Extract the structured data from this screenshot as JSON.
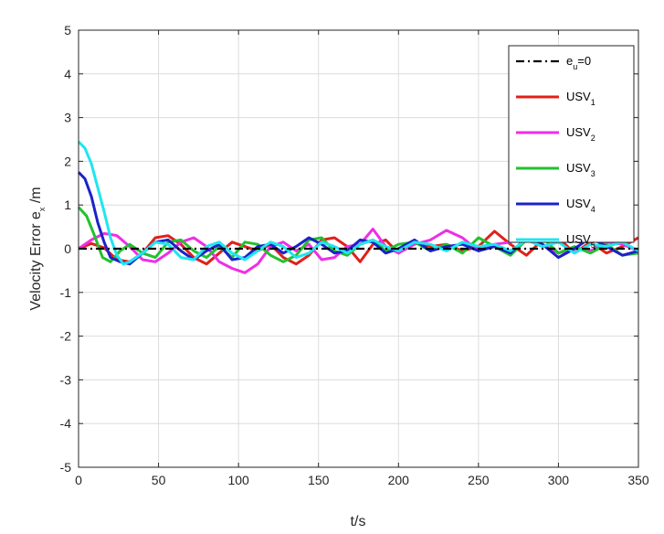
{
  "chart_data": {
    "type": "line",
    "title": "",
    "xlabel": "t/s",
    "ylabel": {
      "main": "Velocity Error e",
      "sub": "x",
      "tail": " /m"
    },
    "xlim": [
      0,
      350
    ],
    "ylim": [
      -5,
      5
    ],
    "xticks": [
      "0",
      "50",
      "100",
      "150",
      "200",
      "250",
      "300",
      "350"
    ],
    "yticks": [
      "-5",
      "-4",
      "-3",
      "-2",
      "-1",
      "0",
      "1",
      "2",
      "3",
      "4",
      "5"
    ],
    "grid": true,
    "legend_position": "top-right",
    "series": [
      {
        "name": "e_u=0",
        "label_main": "e",
        "label_sub": "u",
        "label_tail": "=0",
        "color": "#000000",
        "dash": "dash-dot",
        "x": [
          0,
          350
        ],
        "y": [
          0,
          0
        ]
      },
      {
        "name": "USV_1",
        "label_main": "USV",
        "label_sub": "1",
        "label_tail": "",
        "color": "#e0201b",
        "dash": "solid",
        "x": [
          0,
          8,
          16,
          24,
          32,
          40,
          48,
          56,
          64,
          72,
          80,
          88,
          96,
          104,
          112,
          120,
          128,
          136,
          144,
          152,
          160,
          168,
          176,
          184,
          192,
          200,
          210,
          220,
          230,
          240,
          250,
          260,
          270,
          280,
          290,
          300,
          310,
          320,
          330,
          340,
          350
        ],
        "y": [
          0,
          0.12,
          0.02,
          -0.25,
          -0.3,
          -0.1,
          0.25,
          0.3,
          0.1,
          -0.2,
          -0.35,
          -0.1,
          0.15,
          0.05,
          -0.05,
          0.1,
          -0.2,
          -0.35,
          -0.15,
          0.2,
          0.25,
          0.05,
          -0.3,
          0.1,
          0.2,
          -0.1,
          0.15,
          0.05,
          0.1,
          -0.05,
          0.05,
          0.4,
          0.1,
          -0.15,
          0.2,
          0.25,
          -0.1,
          0.15,
          -0.1,
          0.05,
          0.25
        ]
      },
      {
        "name": "USV_2",
        "label_main": "USV",
        "label_sub": "2",
        "label_tail": "",
        "color": "#ee2ee6",
        "dash": "solid",
        "x": [
          0,
          8,
          16,
          24,
          32,
          40,
          48,
          56,
          64,
          72,
          80,
          88,
          96,
          104,
          112,
          120,
          128,
          136,
          144,
          152,
          160,
          168,
          176,
          184,
          192,
          200,
          210,
          220,
          230,
          240,
          250,
          260,
          270,
          280,
          290,
          300,
          310,
          320,
          330,
          340,
          350
        ],
        "y": [
          0,
          0.2,
          0.35,
          0.3,
          0.05,
          -0.25,
          -0.3,
          -0.1,
          0.15,
          0.25,
          0.05,
          -0.3,
          -0.45,
          -0.55,
          -0.35,
          0.05,
          0.15,
          -0.05,
          0.1,
          -0.25,
          -0.2,
          0.05,
          0.1,
          0.45,
          0.05,
          -0.1,
          0.1,
          0.2,
          0.42,
          0.25,
          -0.05,
          0.1,
          0.15,
          0.35,
          0.1,
          -0.1,
          0.0,
          -0.05,
          0.15,
          0.1,
          -0.05
        ]
      },
      {
        "name": "USV_3",
        "label_main": "USV",
        "label_sub": "3",
        "label_tail": "",
        "color": "#22c12e",
        "dash": "solid",
        "x": [
          0,
          5,
          10,
          15,
          20,
          26,
          32,
          40,
          48,
          56,
          64,
          72,
          80,
          88,
          96,
          104,
          112,
          120,
          128,
          136,
          144,
          152,
          160,
          168,
          176,
          184,
          192,
          200,
          210,
          220,
          230,
          240,
          250,
          260,
          270,
          280,
          290,
          300,
          310,
          320,
          330,
          340,
          350
        ],
        "y": [
          0.95,
          0.75,
          0.3,
          -0.2,
          -0.3,
          -0.05,
          0.1,
          -0.1,
          -0.2,
          0.15,
          0.2,
          -0.05,
          -0.2,
          0.05,
          -0.2,
          0.15,
          0.1,
          -0.15,
          -0.3,
          -0.15,
          0.2,
          0.25,
          -0.05,
          -0.15,
          0.1,
          0.2,
          -0.05,
          0.1,
          0.15,
          -0.05,
          0.1,
          -0.1,
          0.25,
          0.05,
          -0.15,
          0.2,
          0.25,
          -0.1,
          0.05,
          -0.1,
          0.1,
          -0.15,
          -0.1
        ]
      },
      {
        "name": "USV_4",
        "label_main": "USV",
        "label_sub": "4",
        "label_tail": "",
        "color": "#1b22c8",
        "dash": "solid",
        "x": [
          0,
          4,
          8,
          12,
          16,
          20,
          26,
          32,
          40,
          48,
          56,
          64,
          72,
          80,
          88,
          96,
          104,
          112,
          120,
          128,
          136,
          144,
          152,
          160,
          168,
          176,
          184,
          192,
          200,
          210,
          220,
          230,
          240,
          250,
          260,
          270,
          280,
          290,
          300,
          310,
          320,
          330,
          340,
          350
        ],
        "y": [
          1.75,
          1.6,
          1.2,
          0.6,
          0.15,
          -0.2,
          -0.3,
          -0.35,
          -0.1,
          0.15,
          0.2,
          -0.05,
          -0.25,
          -0.05,
          0.1,
          -0.25,
          -0.2,
          0.05,
          0.1,
          -0.1,
          0.05,
          0.25,
          0.1,
          -0.1,
          -0.05,
          0.2,
          0.15,
          -0.1,
          0.0,
          0.2,
          -0.05,
          0.05,
          0.1,
          -0.05,
          0.05,
          -0.1,
          0.25,
          0.1,
          -0.2,
          0.0,
          0.25,
          0.05,
          -0.15,
          -0.05
        ]
      },
      {
        "name": "USV_5",
        "label_main": "USV",
        "label_sub": "5",
        "label_tail": "",
        "color": "#1ee6f0",
        "dash": "solid",
        "x": [
          0,
          4,
          8,
          12,
          16,
          20,
          24,
          28,
          32,
          40,
          48,
          56,
          64,
          72,
          80,
          88,
          96,
          104,
          112,
          120,
          128,
          136,
          144,
          152,
          160,
          168,
          176,
          184,
          192,
          200,
          210,
          220,
          230,
          240,
          250,
          260,
          270,
          280,
          290,
          300,
          310,
          320,
          330,
          340,
          350
        ],
        "y": [
          2.45,
          2.3,
          1.95,
          1.4,
          0.85,
          0.25,
          -0.15,
          -0.35,
          -0.3,
          -0.1,
          0.15,
          0.1,
          -0.2,
          -0.25,
          0.05,
          0.15,
          -0.1,
          -0.25,
          -0.05,
          0.15,
          0.05,
          -0.2,
          -0.1,
          0.15,
          0.05,
          -0.1,
          0.1,
          0.2,
          0.05,
          -0.05,
          0.15,
          0.1,
          -0.05,
          0.15,
          0.05,
          0.1,
          -0.05,
          0.2,
          0.05,
          0.15,
          -0.1,
          0.1,
          0.05,
          0.15,
          -0.05
        ]
      }
    ]
  }
}
